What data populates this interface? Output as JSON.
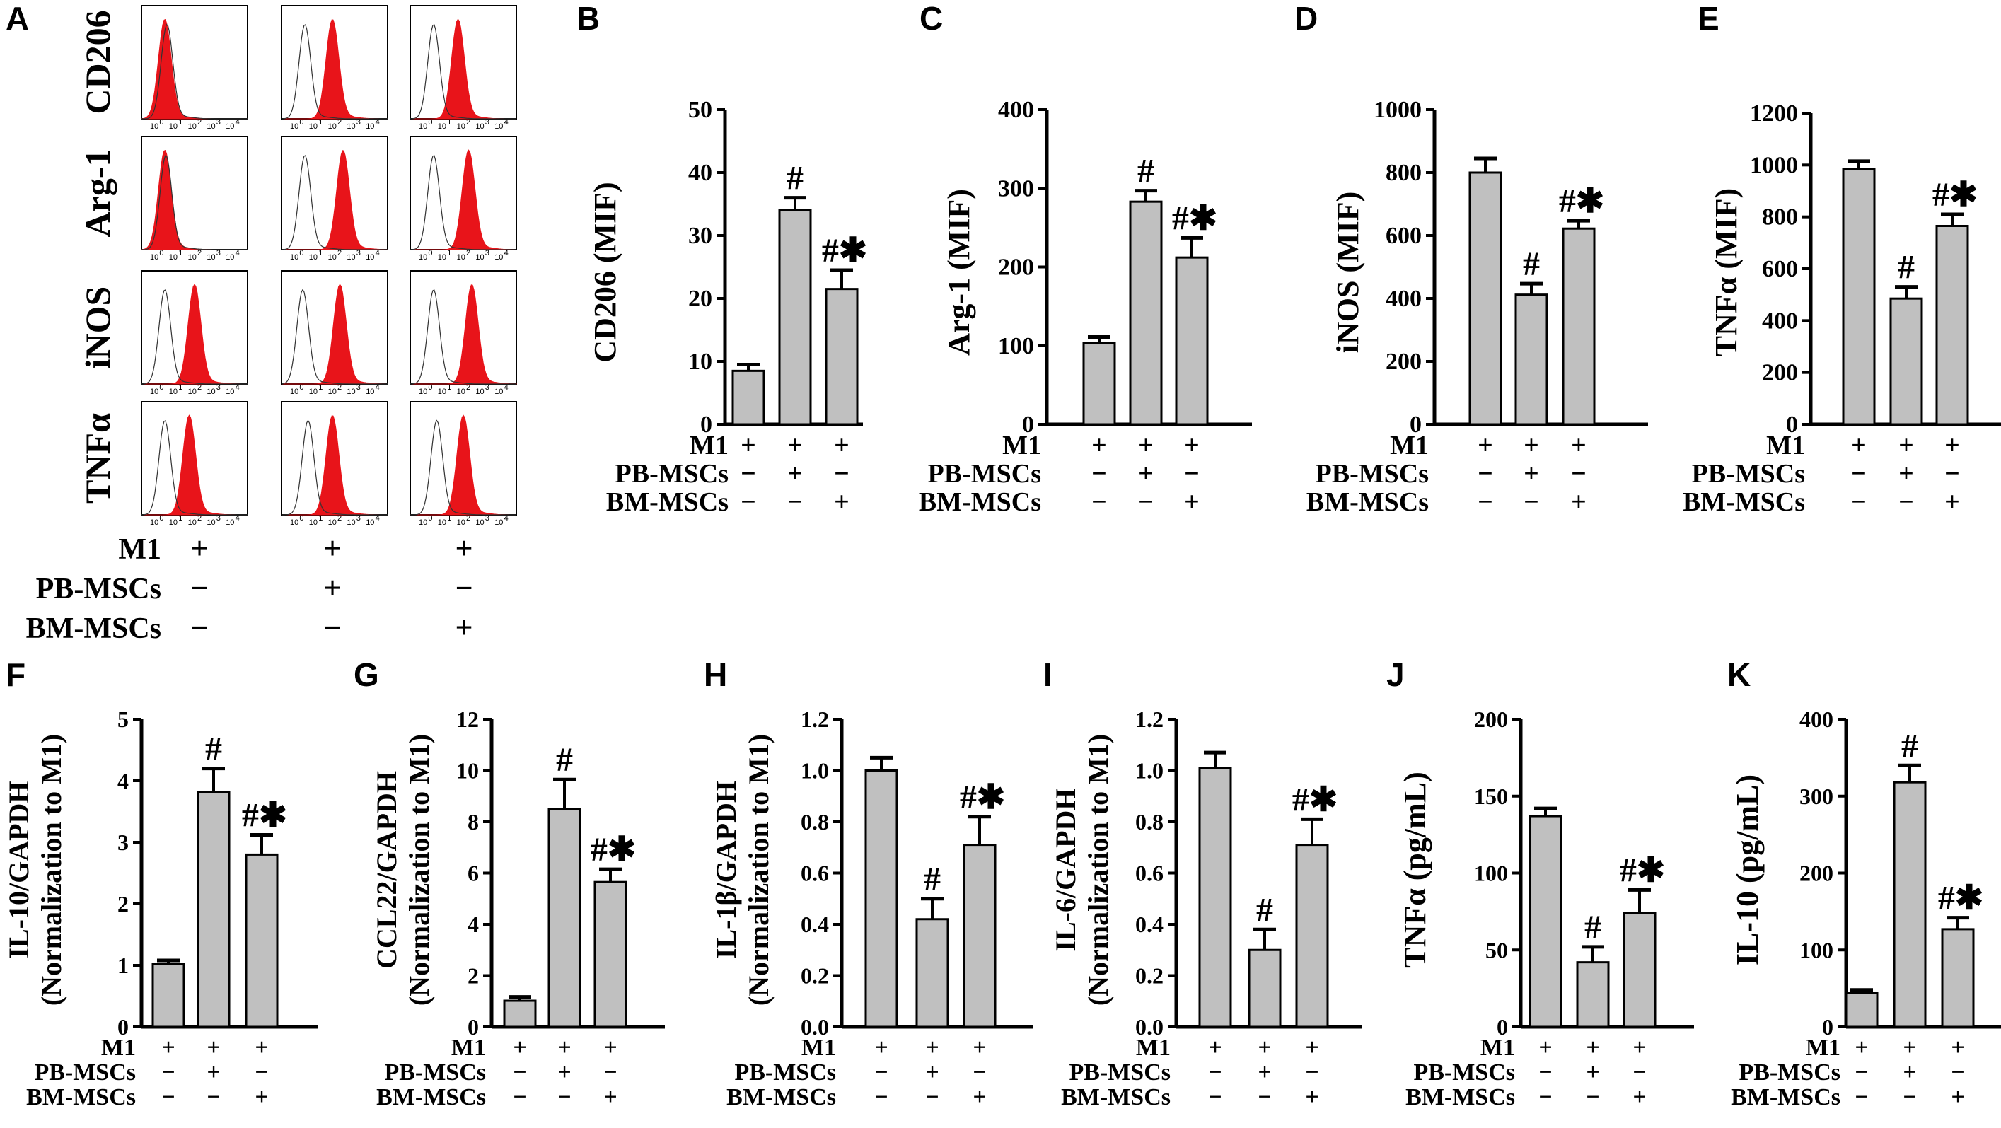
{
  "panel_a": {
    "letter": "A",
    "rows": [
      "CD206",
      "Arg-1",
      "iNOS",
      "TNFα"
    ],
    "axis_ticks": [
      "10",
      "0",
      "10",
      "1",
      "10",
      "2",
      "10",
      "3",
      "10",
      "4"
    ],
    "fill_color": "#e8141a",
    "groups": [
      {
        "label": "M1",
        "values": [
          "+",
          "+",
          "+"
        ]
      },
      {
        "label": "PB-MSCs",
        "values": [
          "−",
          "+",
          "−"
        ]
      },
      {
        "label": "BM-MSCs",
        "values": [
          "−",
          "−",
          "+"
        ]
      }
    ]
  },
  "chart_data": [
    {
      "id": "B",
      "type": "bar",
      "letter": "B",
      "ylabel": "CD206 (MIF)",
      "ylim": [
        0,
        50
      ],
      "yticks": [
        "0",
        "10",
        "20",
        "30",
        "40",
        "50"
      ],
      "values": [
        8.5,
        34,
        21.5
      ],
      "errors": [
        1,
        2,
        3
      ],
      "annotations": [
        "",
        "#",
        "#✱"
      ],
      "groups": [
        {
          "label": "M1",
          "values": [
            "+",
            "+",
            "+"
          ]
        },
        {
          "label": "PB-MSCs",
          "values": [
            "−",
            "+",
            "−"
          ]
        },
        {
          "label": "BM-MSCs",
          "values": [
            "−",
            "−",
            "+"
          ]
        }
      ]
    },
    {
      "id": "C",
      "type": "bar",
      "letter": "C",
      "ylabel": "Arg-1 (MIF)",
      "ylim": [
        0,
        400
      ],
      "yticks": [
        "0",
        "100",
        "200",
        "300",
        "400"
      ],
      "values": [
        103,
        283,
        212
      ],
      "errors": [
        8,
        14,
        25
      ],
      "annotations": [
        "",
        "#",
        "#✱"
      ],
      "groups": [
        {
          "label": "M1",
          "values": [
            "+",
            "+",
            "+"
          ]
        },
        {
          "label": "PB-MSCs",
          "values": [
            "−",
            "+",
            "−"
          ]
        },
        {
          "label": "BM-MSCs",
          "values": [
            "−",
            "−",
            "+"
          ]
        }
      ]
    },
    {
      "id": "D",
      "type": "bar",
      "letter": "D",
      "ylabel": "iNOS (MIF)",
      "ylim": [
        0,
        1000
      ],
      "yticks": [
        "0",
        "200",
        "400",
        "600",
        "800",
        "1000"
      ],
      "values": [
        800,
        412,
        622
      ],
      "errors": [
        45,
        35,
        25
      ],
      "annotations": [
        "",
        "#",
        "#✱"
      ],
      "groups": [
        {
          "label": "M1",
          "values": [
            "+",
            "+",
            "+"
          ]
        },
        {
          "label": "PB-MSCs",
          "values": [
            "−",
            "+",
            "−"
          ]
        },
        {
          "label": "BM-MSCs",
          "values": [
            "−",
            "−",
            "+"
          ]
        }
      ]
    },
    {
      "id": "E",
      "type": "bar",
      "letter": "E",
      "ylabel": "TNFα (MIF)",
      "ylim": [
        0,
        1200
      ],
      "yticks": [
        "0",
        "200",
        "400",
        "600",
        "800",
        "1000",
        "1200"
      ],
      "values": [
        985,
        485,
        765
      ],
      "errors": [
        30,
        45,
        45
      ],
      "annotations": [
        "",
        "#",
        "#✱"
      ],
      "groups": [
        {
          "label": "M1",
          "values": [
            "+",
            "+",
            "+"
          ]
        },
        {
          "label": "PB-MSCs",
          "values": [
            "−",
            "+",
            "−"
          ]
        },
        {
          "label": "BM-MSCs",
          "values": [
            "−",
            "−",
            "+"
          ]
        }
      ]
    },
    {
      "id": "F",
      "type": "bar",
      "letter": "F",
      "ylabel": "IL-10/GAPDH",
      "ylabel2": "(Normalization to M1)",
      "ylim": [
        0,
        5
      ],
      "yticks": [
        "0",
        "1",
        "2",
        "3",
        "4",
        "5"
      ],
      "values": [
        1.02,
        3.82,
        2.8
      ],
      "errors": [
        0.06,
        0.38,
        0.32
      ],
      "annotations": [
        "",
        "#",
        "#✱"
      ],
      "groups": [
        {
          "label": "M1",
          "values": [
            "+",
            "+",
            "+"
          ]
        },
        {
          "label": "PB-MSCs",
          "values": [
            "−",
            "+",
            "−"
          ]
        },
        {
          "label": "BM-MSCs",
          "values": [
            "−",
            "−",
            "+"
          ]
        }
      ]
    },
    {
      "id": "G",
      "type": "bar",
      "letter": "G",
      "ylabel": "CCL22/GAPDH",
      "ylabel2": "(Normalization to M1)",
      "ylim": [
        0,
        12
      ],
      "yticks": [
        "0",
        "2",
        "4",
        "6",
        "8",
        "10",
        "12"
      ],
      "values": [
        1.02,
        8.5,
        5.65
      ],
      "errors": [
        0.15,
        1.15,
        0.5
      ],
      "annotations": [
        "",
        "#",
        "#✱"
      ],
      "groups": [
        {
          "label": "M1",
          "values": [
            "+",
            "+",
            "+"
          ]
        },
        {
          "label": "PB-MSCs",
          "values": [
            "−",
            "+",
            "−"
          ]
        },
        {
          "label": "BM-MSCs",
          "values": [
            "−",
            "−",
            "+"
          ]
        }
      ]
    },
    {
      "id": "H",
      "type": "bar",
      "letter": "H",
      "ylabel": "IL-1β/GAPDH",
      "ylabel2": "(Normalization to M1)",
      "ylim": [
        0,
        1.2
      ],
      "yticks": [
        "0.0",
        "0.2",
        "0.4",
        "0.6",
        "0.8",
        "1.0",
        "1.2"
      ],
      "values": [
        1.0,
        0.42,
        0.71
      ],
      "errors": [
        0.05,
        0.08,
        0.11
      ],
      "annotations": [
        "",
        "#",
        "#✱"
      ],
      "groups": [
        {
          "label": "M1",
          "values": [
            "+",
            "+",
            "+"
          ]
        },
        {
          "label": "PB-MSCs",
          "values": [
            "−",
            "+",
            "−"
          ]
        },
        {
          "label": "BM-MSCs",
          "values": [
            "−",
            "−",
            "+"
          ]
        }
      ]
    },
    {
      "id": "I",
      "type": "bar",
      "letter": "I",
      "ylabel": "IL-6/GAPDH",
      "ylabel2": "(Normalization to M1)",
      "ylim": [
        0,
        1.2
      ],
      "yticks": [
        "0.0",
        "0.2",
        "0.4",
        "0.6",
        "0.8",
        "1.0",
        "1.2"
      ],
      "values": [
        1.01,
        0.3,
        0.71
      ],
      "errors": [
        0.06,
        0.08,
        0.1
      ],
      "annotations": [
        "",
        "#",
        "#✱"
      ],
      "groups": [
        {
          "label": "M1",
          "values": [
            "+",
            "+",
            "+"
          ]
        },
        {
          "label": "PB-MSCs",
          "values": [
            "−",
            "+",
            "−"
          ]
        },
        {
          "label": "BM-MSCs",
          "values": [
            "−",
            "−",
            "+"
          ]
        }
      ]
    },
    {
      "id": "J",
      "type": "bar",
      "letter": "J",
      "ylabel": "TNFα (pg/mL)",
      "ylim": [
        0,
        200
      ],
      "yticks": [
        "0",
        "50",
        "100",
        "150",
        "200"
      ],
      "values": [
        137,
        42,
        74
      ],
      "errors": [
        5,
        10,
        15
      ],
      "annotations": [
        "",
        "#",
        "#✱"
      ],
      "groups": [
        {
          "label": "M1",
          "values": [
            "+",
            "+",
            "+"
          ]
        },
        {
          "label": "PB-MSCs",
          "values": [
            "−",
            "+",
            "−"
          ]
        },
        {
          "label": "BM-MSCs",
          "values": [
            "−",
            "−",
            "+"
          ]
        }
      ]
    },
    {
      "id": "K",
      "type": "bar",
      "letter": "K",
      "ylabel": "IL-10 (pg/mL)",
      "ylim": [
        0,
        400
      ],
      "yticks": [
        "0",
        "100",
        "200",
        "300",
        "400"
      ],
      "values": [
        44,
        318,
        127
      ],
      "errors": [
        4,
        22,
        15
      ],
      "annotations": [
        "",
        "#",
        "#✱"
      ],
      "groups": [
        {
          "label": "M1",
          "values": [
            "+",
            "+",
            "+"
          ]
        },
        {
          "label": "PB-MSCs",
          "values": [
            "−",
            "+",
            "−"
          ]
        },
        {
          "label": "BM-MSCs",
          "values": [
            "−",
            "−",
            "+"
          ]
        }
      ]
    }
  ],
  "colors": {
    "bar_fill": "#c0c0c0",
    "ink": "#000000",
    "flow_fill": "#e8141a"
  }
}
